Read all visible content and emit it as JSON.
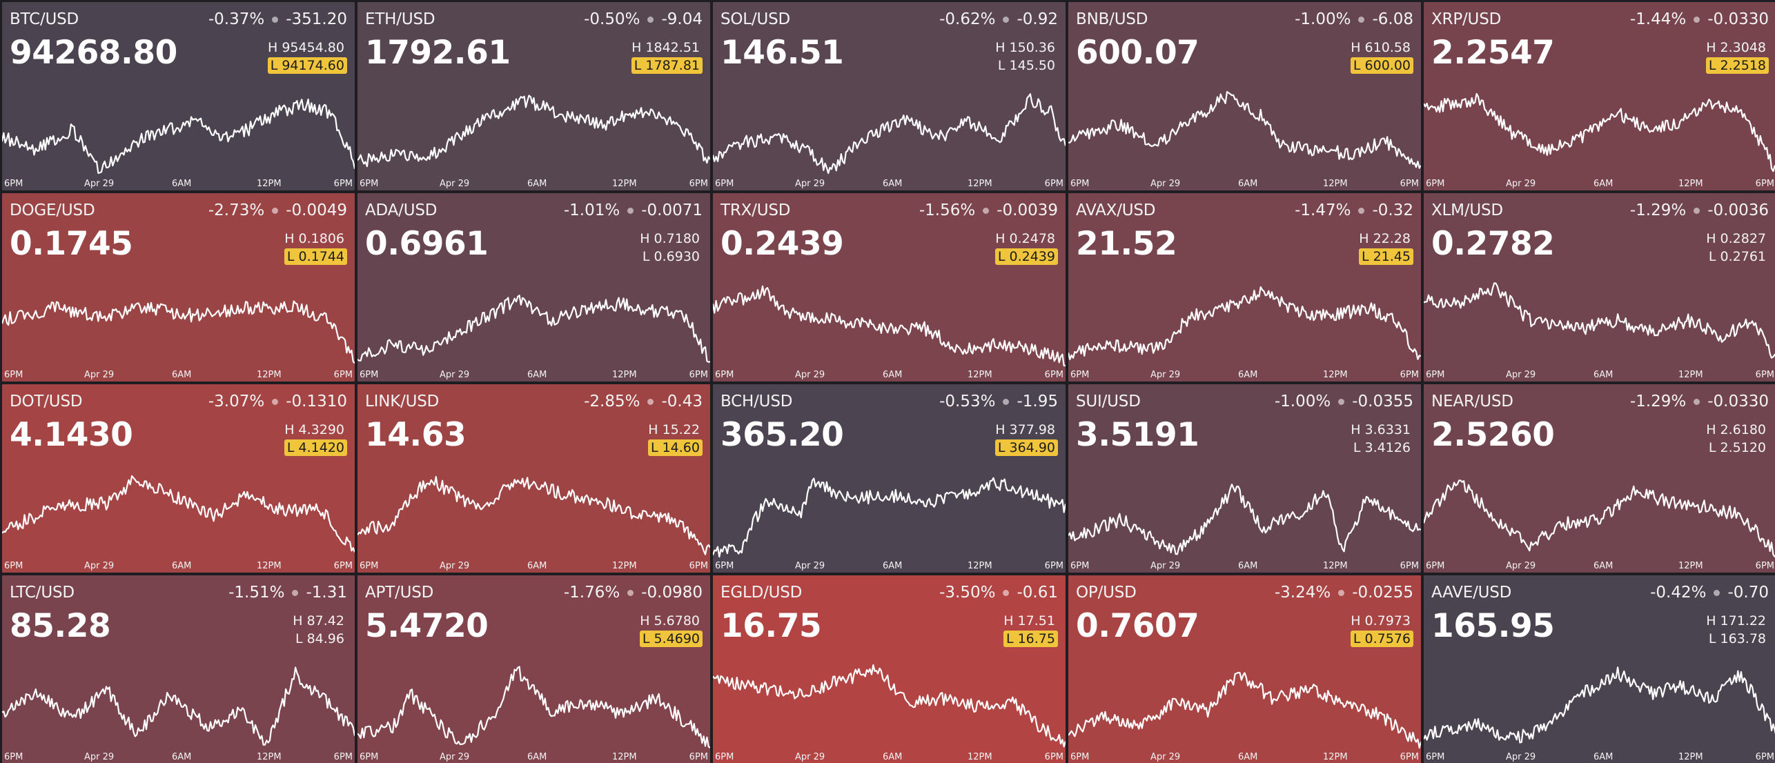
{
  "axis_labels": [
    "6PM",
    "Apr 29",
    "6AM",
    "12PM",
    "6PM"
  ],
  "tiles": [
    {
      "pair": "BTC/USD",
      "change_pct": "-0.37%",
      "change_abs": "-351.20",
      "price": "94268.80",
      "high": "H 95454.80",
      "low": "L 94174.60",
      "high_hit": false,
      "low_hit": true,
      "color": "#4b4450",
      "trend": "btc"
    },
    {
      "pair": "ETH/USD",
      "change_pct": "-0.50%",
      "change_abs": "-9.04",
      "price": "1792.61",
      "high": "H 1842.51",
      "low": "L 1787.81",
      "high_hit": false,
      "low_hit": true,
      "color": "#554650",
      "trend": "eth"
    },
    {
      "pair": "SOL/USD",
      "change_pct": "-0.62%",
      "change_abs": "-0.92",
      "price": "146.51",
      "high": "H 150.36",
      "low": "L 145.50",
      "high_hit": false,
      "low_hit": false,
      "color": "#594650",
      "trend": "sol"
    },
    {
      "pair": "BNB/USD",
      "change_pct": "-1.00%",
      "change_abs": "-6.08",
      "price": "600.07",
      "high": "H 610.58",
      "low": "L 600.00",
      "high_hit": false,
      "low_hit": true,
      "color": "#654550",
      "trend": "bnb"
    },
    {
      "pair": "XRP/USD",
      "change_pct": "-1.44%",
      "change_abs": "-0.0330",
      "price": "2.2547",
      "high": "H 2.3048",
      "low": "L 2.2518",
      "high_hit": false,
      "low_hit": true,
      "color": "#77444e",
      "trend": "xrp"
    },
    {
      "pair": "DOGE/USD",
      "change_pct": "-2.73%",
      "change_abs": "-0.0049",
      "price": "0.1745",
      "high": "H 0.1806",
      "low": "L 0.1744",
      "high_hit": false,
      "low_hit": true,
      "color": "#9b4446",
      "trend": "doge"
    },
    {
      "pair": "ADA/USD",
      "change_pct": "-1.01%",
      "change_abs": "-0.0071",
      "price": "0.6961",
      "high": "H 0.7180",
      "low": "L 0.6930",
      "high_hit": false,
      "low_hit": false,
      "color": "#644550",
      "trend": "ada"
    },
    {
      "pair": "TRX/USD",
      "change_pct": "-1.56%",
      "change_abs": "-0.0039",
      "price": "0.2439",
      "high": "H 0.2478",
      "low": "L 0.2439",
      "high_hit": false,
      "low_hit": true,
      "color": "#7c444d",
      "trend": "trx"
    },
    {
      "pair": "AVAX/USD",
      "change_pct": "-1.47%",
      "change_abs": "-0.32",
      "price": "21.52",
      "high": "H 22.28",
      "low": "L 21.45",
      "high_hit": false,
      "low_hit": true,
      "color": "#78444e",
      "trend": "avax"
    },
    {
      "pair": "XLM/USD",
      "change_pct": "-1.29%",
      "change_abs": "-0.0036",
      "price": "0.2782",
      "high": "H 0.2827",
      "low": "L 0.2761",
      "high_hit": false,
      "low_hit": false,
      "color": "#70454f",
      "trend": "xlm"
    },
    {
      "pair": "DOT/USD",
      "change_pct": "-3.07%",
      "change_abs": "-0.1310",
      "price": "4.1430",
      "high": "H 4.3290",
      "low": "L 4.1420",
      "high_hit": false,
      "low_hit": true,
      "color": "#a44444",
      "trend": "dot"
    },
    {
      "pair": "LINK/USD",
      "change_pct": "-2.85%",
      "change_abs": "-0.43",
      "price": "14.63",
      "high": "H 15.22",
      "low": "L 14.60",
      "high_hit": false,
      "low_hit": true,
      "color": "#9e4445",
      "trend": "link"
    },
    {
      "pair": "BCH/USD",
      "change_pct": "-0.53%",
      "change_abs": "-1.95",
      "price": "365.20",
      "high": "H 377.98",
      "low": "L 364.90",
      "high_hit": false,
      "low_hit": true,
      "color": "#4c4450",
      "trend": "bch"
    },
    {
      "pair": "SUI/USD",
      "change_pct": "-1.00%",
      "change_abs": "-0.0355",
      "price": "3.5191",
      "high": "H 3.6331",
      "low": "L 3.4126",
      "high_hit": false,
      "low_hit": false,
      "color": "#644550",
      "trend": "sui"
    },
    {
      "pair": "NEAR/USD",
      "change_pct": "-1.29%",
      "change_abs": "-0.0330",
      "price": "2.5260",
      "high": "H 2.6180",
      "low": "L 2.5120",
      "high_hit": false,
      "low_hit": false,
      "color": "#70454f",
      "trend": "near"
    },
    {
      "pair": "LTC/USD",
      "change_pct": "-1.51%",
      "change_abs": "-1.31",
      "price": "85.28",
      "high": "H 87.42",
      "low": "L 84.96",
      "high_hit": false,
      "low_hit": false,
      "color": "#7a444e",
      "trend": "ltc"
    },
    {
      "pair": "APT/USD",
      "change_pct": "-1.76%",
      "change_abs": "-0.0980",
      "price": "5.4720",
      "high": "H 5.6780",
      "low": "L 5.4690",
      "high_hit": false,
      "low_hit": true,
      "color": "#81444c",
      "trend": "apt"
    },
    {
      "pair": "EGLD/USD",
      "change_pct": "-3.50%",
      "change_abs": "-0.61",
      "price": "16.75",
      "high": "H 17.51",
      "low": "L 16.75",
      "high_hit": false,
      "low_hit": true,
      "color": "#b34444",
      "trend": "egld"
    },
    {
      "pair": "OP/USD",
      "change_pct": "-3.24%",
      "change_abs": "-0.0255",
      "price": "0.7607",
      "high": "H 0.7973",
      "low": "L 0.7576",
      "high_hit": false,
      "low_hit": true,
      "color": "#a84444",
      "trend": "op"
    },
    {
      "pair": "AAVE/USD",
      "change_pct": "-0.42%",
      "change_abs": "-0.70",
      "price": "165.95",
      "high": "H 171.22",
      "low": "L 163.78",
      "high_hit": false,
      "low_hit": false,
      "color": "#4a4450",
      "trend": "aave"
    }
  ]
}
